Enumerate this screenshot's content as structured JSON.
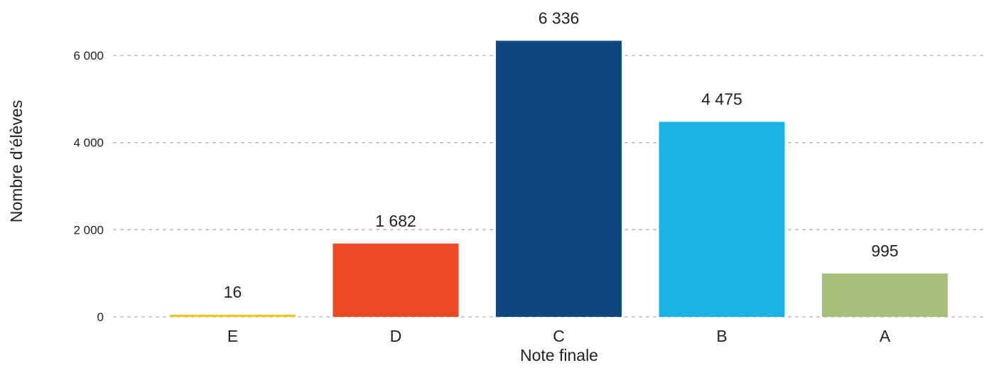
{
  "chart_data": {
    "type": "bar",
    "title": "",
    "xlabel": "Note finale",
    "ylabel": "Nombre d’élèves",
    "categories": [
      "E",
      "D",
      "C",
      "B",
      "A"
    ],
    "values": [
      16,
      1682,
      6336,
      4475,
      995
    ],
    "value_labels": [
      "16",
      "1 682",
      "6 336",
      "4 475",
      "995"
    ],
    "colors": [
      "#f2c81a",
      "#ec4a24",
      "#0f467f",
      "#1ab3e6",
      "#a5c07a"
    ],
    "ylim": [
      0,
      6000
    ],
    "yticks": [
      0,
      2000,
      4000,
      6000
    ],
    "ytick_labels": [
      "0",
      "2 000",
      "4 000",
      "6 000"
    ],
    "grid": true,
    "legend": "none"
  }
}
